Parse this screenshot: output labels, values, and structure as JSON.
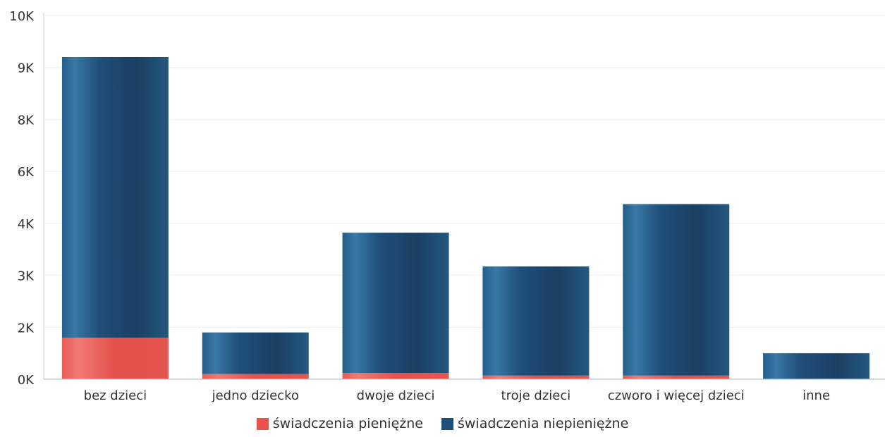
{
  "chart_data": {
    "type": "bar",
    "stacked": true,
    "categories": [
      "bez dzieci",
      "jedno dziecko",
      "dwoje dzieci",
      "troje dzieci",
      "czworo i więcej dzieci",
      "inne"
    ],
    "series": [
      {
        "name": "świadczenia pieniężne",
        "color": "#e8534f",
        "values": [
          0.8,
          0.1,
          0.12,
          0.07,
          0.07,
          0
        ]
      },
      {
        "name": "świadczenia niepieniężne",
        "color": "#1e4f78",
        "values": [
          5.4,
          0.8,
          2.7,
          2.1,
          3.3,
          0.5
        ]
      }
    ],
    "y_ticks": [
      "0K",
      "2K",
      "3K",
      "4K",
      "6K",
      "8K",
      "9K",
      "10K"
    ],
    "y_tick_values": [
      0,
      1,
      2,
      3,
      4,
      5,
      6,
      7
    ],
    "ylim": [
      0,
      7
    ],
    "grid": true,
    "legend_position": "bottom-center",
    "xlabel": "",
    "ylabel": ""
  }
}
